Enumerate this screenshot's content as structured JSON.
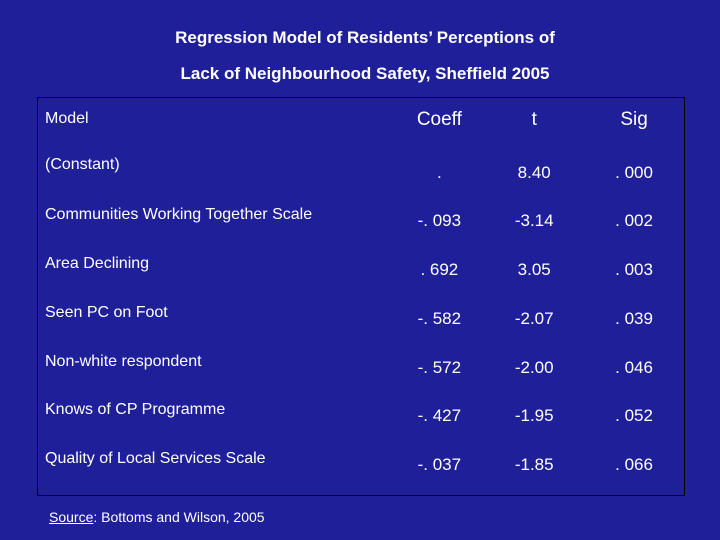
{
  "title_line1": "Regression Model of Residents’ Perceptions of",
  "title_line2": "Lack of Neighbourhood Safety, Sheffield 2005",
  "table": {
    "headers": [
      "Model",
      "Coeff",
      "t",
      "Sig"
    ],
    "rows": [
      [
        "(Constant)",
        ".",
        "8.40",
        ". 000"
      ],
      [
        "Communities Working Together Scale",
        "-. 093",
        "-3.14",
        ". 002"
      ],
      [
        "Area Declining",
        ". 692",
        "3.05",
        ". 003"
      ],
      [
        "Seen PC on Foot",
        "-. 582",
        "-2.07",
        ". 039"
      ],
      [
        "Non-white respondent",
        "-. 572",
        "-2.00",
        ". 046"
      ],
      [
        "Knows of CP Programme",
        "-. 427",
        "-1.95",
        ". 052"
      ],
      [
        "Quality of Local Services Scale",
        "-. 037",
        "-1.85",
        ". 066"
      ]
    ]
  },
  "source": {
    "label": "Source",
    "text": ": Bottoms and Wilson, 2005"
  }
}
